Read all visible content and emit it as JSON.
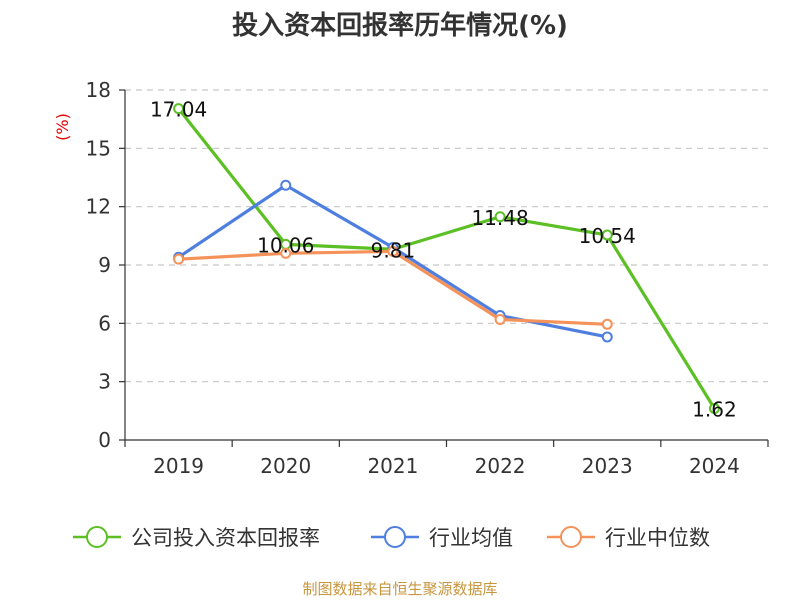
{
  "title": "投入资本回报率历年情况(%)",
  "source": "制图数据来自恒生聚源数据库",
  "chart_data": {
    "type": "line",
    "title": "投入资本回报率历年情况(%)",
    "ylabel": "(%)",
    "xlabel": "",
    "categories": [
      "2019",
      "2020",
      "2021",
      "2022",
      "2023",
      "2024"
    ],
    "ylim": [
      0,
      18
    ],
    "yticks": [
      0,
      3,
      6,
      9,
      12,
      15,
      18
    ],
    "grid": true,
    "legend_position": "bottom",
    "series": [
      {
        "name": "公司投入资本回报率",
        "color": "#5cc025",
        "values": [
          17.04,
          10.06,
          9.81,
          11.48,
          10.54,
          1.62
        ],
        "data_labels": [
          "17.04",
          "10.06",
          "9.81",
          "11.48",
          "10.54",
          "1.62"
        ]
      },
      {
        "name": "行业均值",
        "color": "#4e7fe0",
        "values": [
          9.4,
          13.1,
          9.9,
          6.4,
          5.3,
          null
        ]
      },
      {
        "name": "行业中位数",
        "color": "#f5925a",
        "values": [
          9.3,
          9.6,
          9.7,
          6.2,
          5.95,
          null
        ]
      }
    ]
  }
}
